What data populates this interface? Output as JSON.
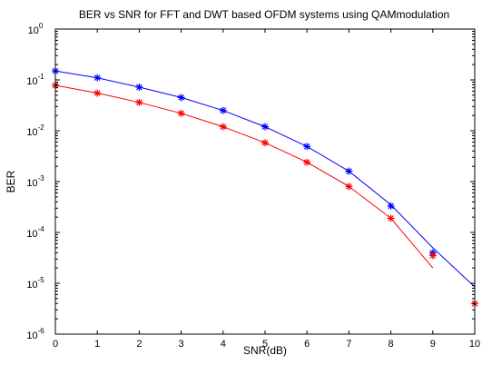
{
  "chart_data": {
    "type": "line",
    "title": "BER vs SNR for FFT and DWT based OFDM systems using QAMmodulation",
    "xlabel": "SNR(dB)",
    "ylabel": "BER",
    "xlim": [
      0,
      10
    ],
    "ylim": [
      1e-06,
      1
    ],
    "yscale": "log",
    "grid": false,
    "legend": "none",
    "x_ticks": [
      "0",
      "1",
      "2",
      "3",
      "4",
      "5",
      "6",
      "7",
      "8",
      "9",
      "10"
    ],
    "y_ticks": [
      {
        "base": "10",
        "exp": "-6",
        "value": 1e-06
      },
      {
        "base": "10",
        "exp": "-5",
        "value": 1e-05
      },
      {
        "base": "10",
        "exp": "-4",
        "value": 0.0001
      },
      {
        "base": "10",
        "exp": "-3",
        "value": 0.001
      },
      {
        "base": "10",
        "exp": "-2",
        "value": 0.01
      },
      {
        "base": "10",
        "exp": "-1",
        "value": 0.1
      },
      {
        "base": "10",
        "exp": "0",
        "value": 1
      }
    ],
    "series": [
      {
        "color": "#0000ff",
        "line": {
          "x": [
            0,
            1,
            2,
            3,
            4,
            5,
            6,
            7,
            8,
            9,
            10
          ],
          "y": [
            0.15,
            0.11,
            0.072,
            0.045,
            0.025,
            0.012,
            0.0049,
            0.0016,
            0.00035,
            5e-05,
            8.5e-06
          ]
        },
        "markers": {
          "x": [
            0,
            1,
            2,
            3,
            4,
            5,
            6,
            7,
            8,
            9
          ],
          "y": [
            0.15,
            0.11,
            0.072,
            0.045,
            0.025,
            0.012,
            0.0049,
            0.0016,
            0.00033,
            4e-05
          ]
        }
      },
      {
        "color": "#ff0000",
        "line": {
          "x": [
            0,
            1,
            2,
            3,
            4,
            5,
            6,
            7,
            8,
            9
          ],
          "y": [
            0.078,
            0.055,
            0.036,
            0.022,
            0.012,
            0.0058,
            0.0024,
            0.0008,
            0.00019,
            2e-05
          ]
        },
        "markers": {
          "x": [
            0,
            1,
            2,
            3,
            4,
            5,
            6,
            7,
            8,
            9,
            10
          ],
          "y": [
            0.078,
            0.055,
            0.036,
            0.022,
            0.012,
            0.0058,
            0.0024,
            0.0008,
            0.00019,
            3.5e-05,
            4e-06
          ]
        }
      }
    ]
  }
}
